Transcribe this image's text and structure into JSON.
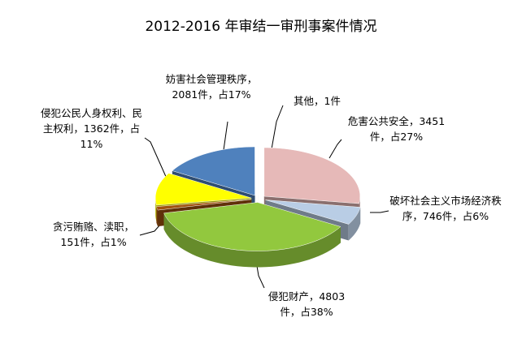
{
  "chart_data": {
    "type": "pie3d",
    "title": "2012-2016 年审结一审刑事案件情况",
    "separator": "，",
    "categories": [
      "危害公共安全",
      "破坏社会主义市场经济秩序",
      "侵犯财产",
      "贪污贿赂、渎职",
      "侵犯公民人身权利、民主权利",
      "妨害社会管理秩序",
      "其他"
    ],
    "values": [
      3451,
      746,
      4803,
      151,
      1362,
      2081,
      1
    ],
    "value_labels": [
      "3451件",
      "746件",
      "4803件",
      "151件",
      "1362件",
      "2081件",
      "1件"
    ],
    "shares": [
      27,
      6,
      38,
      1,
      11,
      17,
      null
    ],
    "share_labels": [
      "占27%",
      "占6%",
      "占38%",
      "占1%",
      "占11%",
      "占17%",
      null
    ],
    "colors": [
      "#e6b9b8",
      "#b9cde5",
      "#92c83e",
      "#a0520f",
      "#ffff00",
      "#4f81bd",
      "#7f7f7f"
    ]
  }
}
